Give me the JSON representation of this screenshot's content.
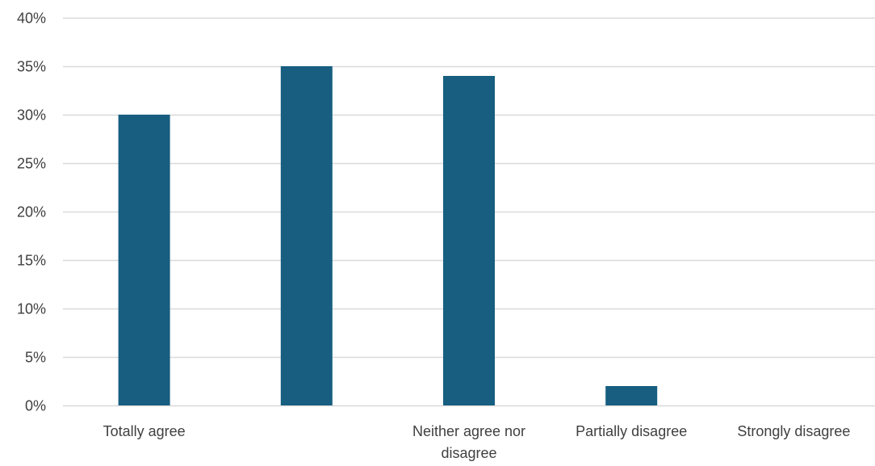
{
  "chart_data": {
    "type": "bar",
    "title": "",
    "xlabel": "",
    "ylabel": "",
    "categories": [
      "Totally agree",
      "",
      "Neither agree nor disagree",
      "Partially disagree",
      "Strongly disagree"
    ],
    "category_label_lines": [
      [
        "Totally agree"
      ],
      [
        ""
      ],
      [
        "Neither agree nor",
        "disagree"
      ],
      [
        "Partially disagree"
      ],
      [
        "Strongly disagree"
      ]
    ],
    "values": [
      30,
      35,
      34,
      2,
      0
    ],
    "ylim": [
      0,
      40
    ],
    "yticks": [
      0,
      5,
      10,
      15,
      20,
      25,
      30,
      35,
      40
    ],
    "ytick_labels": [
      "0%",
      "5%",
      "10%",
      "15%",
      "20%",
      "25%",
      "30%",
      "35%",
      "40%"
    ],
    "grid": true,
    "legend": "none",
    "bar_color": "#175e80",
    "grid_color": "#d9d9d9"
  }
}
